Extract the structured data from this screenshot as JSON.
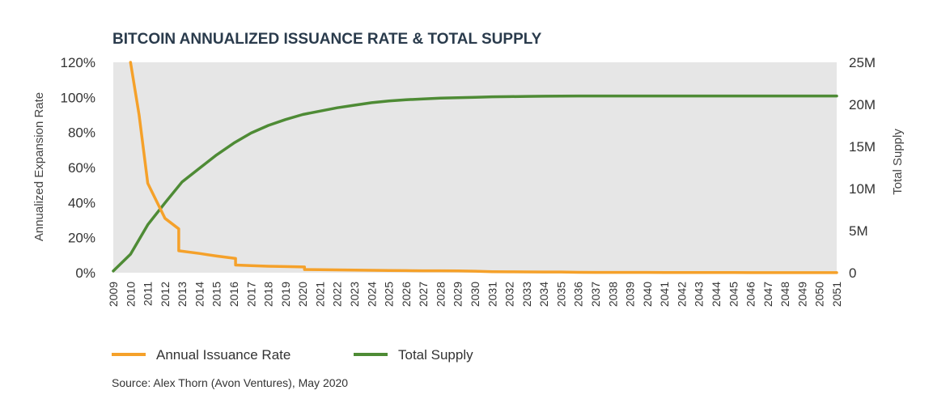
{
  "colors": {
    "issuance": "#f5a12a",
    "supply": "#4e8b35",
    "plot_bg": "#e6e6e6",
    "title": "#2a3b4c"
  },
  "chart_data": {
    "type": "line",
    "title": "BITCOIN ANNUALIZED ISSUANCE RATE & TOTAL SUPPLY",
    "ylabel_left": "Annualized Expansion Rate",
    "ylabel_right": "Total Supply",
    "source": "Source: Alex Thorn (Avon Ventures), May 2020",
    "ylim_left": [
      0,
      120
    ],
    "ylim_right": [
      0,
      25
    ],
    "left_ticks": [
      "0%",
      "20%",
      "40%",
      "60%",
      "80%",
      "100%",
      "120%"
    ],
    "right_ticks": [
      "0",
      "5M",
      "10M",
      "15M",
      "20M",
      "25M"
    ],
    "x_categories": [
      "2009",
      "2010",
      "2011",
      "2012",
      "2013",
      "2014",
      "2015",
      "2016",
      "2017",
      "2018",
      "2019",
      "2020",
      "2021",
      "2022",
      "2023",
      "2024",
      "2025",
      "2026",
      "2027",
      "2028",
      "2029",
      "2030",
      "2031",
      "2032",
      "2033",
      "2034",
      "2035",
      "2036",
      "2037",
      "2038",
      "2039",
      "2040",
      "2041",
      "2042",
      "2043",
      "2044",
      "2045",
      "2046",
      "2047",
      "2048",
      "2049",
      "2050",
      "2051"
    ],
    "x_range": [
      2009,
      2051
    ],
    "legend_position": "bottom-left",
    "grid": false,
    "series": [
      {
        "name": "Annual Issuance Rate",
        "axis": "left",
        "color": "#f5a12a",
        "points": [
          [
            2010,
            120
          ],
          [
            2010.5,
            90
          ],
          [
            2011,
            51
          ],
          [
            2012,
            31
          ],
          [
            2012.8,
            25
          ],
          [
            2012.8,
            12.5
          ],
          [
            2014,
            11
          ],
          [
            2015,
            9.5
          ],
          [
            2016.1,
            8.1
          ],
          [
            2016.1,
            4.4
          ],
          [
            2017,
            4
          ],
          [
            2018,
            3.7
          ],
          [
            2019,
            3.5
          ],
          [
            2020.1,
            3.3
          ],
          [
            2020.1,
            1.8
          ],
          [
            2021,
            1.7
          ],
          [
            2022,
            1.6
          ],
          [
            2023,
            1.5
          ],
          [
            2024,
            1.4
          ],
          [
            2025,
            1.3
          ],
          [
            2026,
            1.2
          ],
          [
            2027,
            1.1
          ],
          [
            2028,
            1.1
          ],
          [
            2029,
            1
          ],
          [
            2030,
            0.9
          ],
          [
            2031,
            0.6
          ],
          [
            2032,
            0.5
          ],
          [
            2033,
            0.45
          ],
          [
            2034,
            0.4
          ],
          [
            2035,
            0.4
          ],
          [
            2036,
            0.25
          ],
          [
            2037,
            0.2
          ],
          [
            2038,
            0.2
          ],
          [
            2039,
            0.2
          ],
          [
            2040,
            0.2
          ],
          [
            2041,
            0.1
          ],
          [
            2042,
            0.1
          ],
          [
            2043,
            0.1
          ],
          [
            2044,
            0.1
          ],
          [
            2045,
            0.1
          ],
          [
            2046,
            0.05
          ],
          [
            2047,
            0.05
          ],
          [
            2048,
            0.05
          ],
          [
            2049,
            0.05
          ],
          [
            2050,
            0.05
          ],
          [
            2051,
            0.05
          ]
        ]
      },
      {
        "name": "Total Supply",
        "axis": "right",
        "color": "#4e8b35",
        "points": [
          [
            2009,
            0.2
          ],
          [
            2010,
            2.2
          ],
          [
            2011,
            5.7
          ],
          [
            2012,
            8.3
          ],
          [
            2013,
            10.8
          ],
          [
            2014,
            12.4
          ],
          [
            2015,
            14
          ],
          [
            2016,
            15.4
          ],
          [
            2017,
            16.6
          ],
          [
            2018,
            17.5
          ],
          [
            2019,
            18.2
          ],
          [
            2020,
            18.8
          ],
          [
            2021,
            19.2
          ],
          [
            2022,
            19.6
          ],
          [
            2023,
            19.9
          ],
          [
            2024,
            20.2
          ],
          [
            2025,
            20.4
          ],
          [
            2026,
            20.55
          ],
          [
            2027,
            20.65
          ],
          [
            2028,
            20.75
          ],
          [
            2029,
            20.8
          ],
          [
            2030,
            20.85
          ],
          [
            2031,
            20.9
          ],
          [
            2032,
            20.92
          ],
          [
            2033,
            20.95
          ],
          [
            2034,
            20.97
          ],
          [
            2035,
            20.99
          ],
          [
            2036,
            21
          ],
          [
            2037,
            21
          ],
          [
            2038,
            21
          ],
          [
            2039,
            21
          ],
          [
            2040,
            21
          ],
          [
            2041,
            21
          ],
          [
            2042,
            21
          ],
          [
            2043,
            21
          ],
          [
            2044,
            21
          ],
          [
            2045,
            21
          ],
          [
            2046,
            21
          ],
          [
            2047,
            21
          ],
          [
            2048,
            21
          ],
          [
            2049,
            21
          ],
          [
            2050,
            21
          ],
          [
            2051,
            21
          ]
        ]
      }
    ]
  }
}
